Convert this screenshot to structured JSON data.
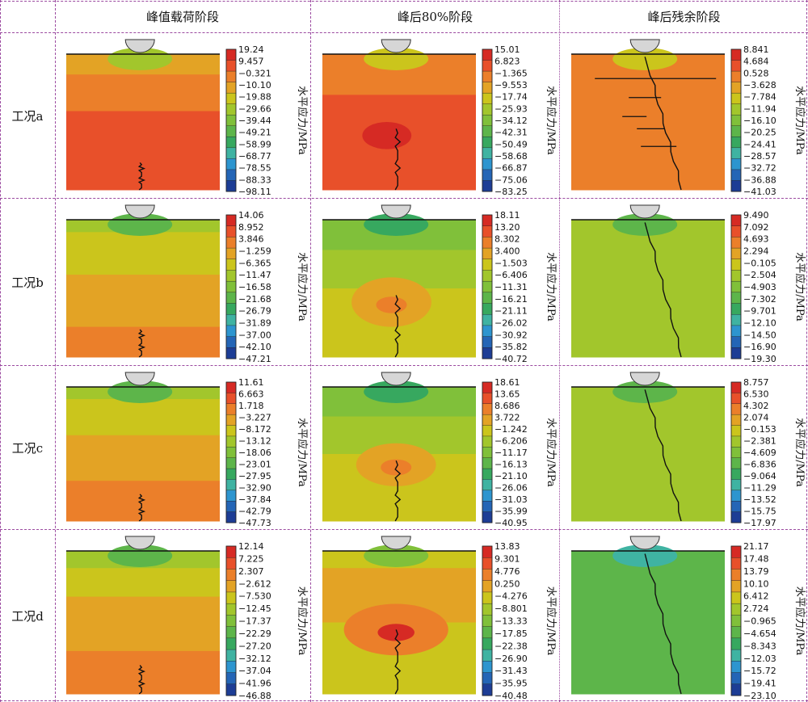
{
  "colors": {
    "border": "#9b4aa0",
    "palette": [
      "#d62a24",
      "#e8502a",
      "#eb7f2a",
      "#e3a325",
      "#cbc51c",
      "#a2c62c",
      "#80c03a",
      "#5db54a",
      "#37a85f",
      "#3fb3a2",
      "#2d95cf",
      "#2465b6",
      "#1d3d95"
    ],
    "crack": "#111111",
    "indenter": "#d6d6d6"
  },
  "headers": [
    "峰值载荷阶段",
    "峰后80%阶段",
    "峰后残余阶段"
  ],
  "rows": [
    "工况a",
    "工况b",
    "工况c",
    "工况d"
  ],
  "colorbar_label": "水平应力/MPa",
  "legends": [
    [
      [
        "19.24",
        "9.457",
        "−0.321",
        "−10.10",
        "−19.88",
        "−29.66",
        "−39.44",
        "−49.21",
        "−58.99",
        "−68.77",
        "−78.55",
        "−88.33",
        "−98.11"
      ],
      [
        "15.01",
        "6.823",
        "−1.365",
        "−9.553",
        "−17.74",
        "−25.93",
        "−34.12",
        "−42.31",
        "−50.49",
        "−58.68",
        "−66.87",
        "−75.06",
        "−83.25"
      ],
      [
        "8.841",
        "4.684",
        "0.528",
        "−3.628",
        "−7.784",
        "−11.94",
        "−16.10",
        "−20.25",
        "−24.41",
        "−28.57",
        "−32.72",
        "−36.88",
        "−41.03"
      ]
    ],
    [
      [
        "14.06",
        "8.952",
        "3.846",
        "−1.259",
        "−6.365",
        "−11.47",
        "−16.58",
        "−21.68",
        "−26.79",
        "−31.89",
        "−37.00",
        "−42.10",
        "−47.21"
      ],
      [
        "18.11",
        "13.20",
        "8.302",
        "3.400",
        "−1.503",
        "−6.406",
        "−11.31",
        "−16.21",
        "−21.11",
        "−26.02",
        "−30.92",
        "−35.82",
        "−40.72"
      ],
      [
        "9.490",
        "7.092",
        "4.693",
        "2.294",
        "−0.105",
        "−2.504",
        "−4.903",
        "−7.302",
        "−9.701",
        "−12.10",
        "−14.50",
        "−16.90",
        "−19.30"
      ]
    ],
    [
      [
        "11.61",
        "6.663",
        "1.718",
        "−3.227",
        "−8.172",
        "−13.12",
        "−18.06",
        "−23.01",
        "−27.95",
        "−32.90",
        "−37.84",
        "−42.79",
        "−47.73"
      ],
      [
        "18.61",
        "13.65",
        "8.686",
        "3.722",
        "−1.242",
        "−6.206",
        "−11.17",
        "−16.13",
        "−21.10",
        "−26.06",
        "−31.03",
        "−35.99",
        "−40.95"
      ],
      [
        "8.757",
        "6.530",
        "4.302",
        "2.074",
        "−0.153",
        "−2.381",
        "−4.609",
        "−6.836",
        "−9.064",
        "−11.29",
        "−13.52",
        "−15.75",
        "−17.97"
      ]
    ],
    [
      [
        "12.14",
        "7.225",
        "2.307",
        "−2.612",
        "−7.530",
        "−12.45",
        "−17.37",
        "−22.29",
        "−27.20",
        "−32.12",
        "−37.04",
        "−41.96",
        "−46.88"
      ],
      [
        "13.83",
        "9.301",
        "4.776",
        "0.250",
        "−4.276",
        "−8.801",
        "−13.33",
        "−17.85",
        "−22.38",
        "−26.90",
        "−31.43",
        "−35.95",
        "−40.48"
      ],
      [
        "21.17",
        "17.48",
        "13.79",
        "10.10",
        "6.412",
        "2.724",
        "−0.965",
        "−4.654",
        "−8.343",
        "−12.03",
        "−15.72",
        "−19.41",
        "−23.10"
      ]
    ]
  ]
}
